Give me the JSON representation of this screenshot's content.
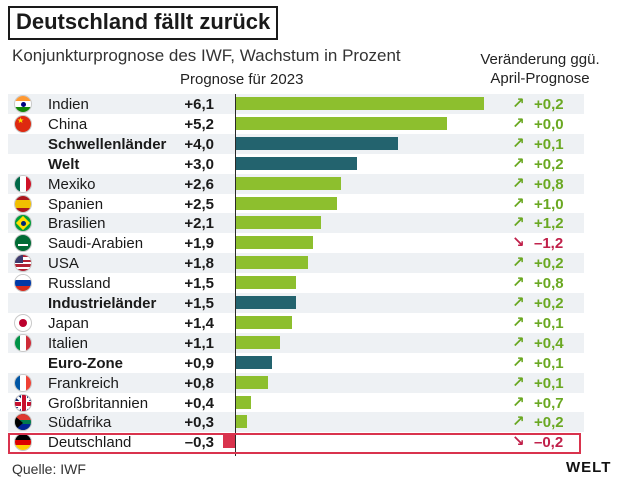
{
  "header": {
    "title": "Deutschland fällt zurück",
    "subtitle": "Konjunkturprognose des IWF, Wachstum in Prozent",
    "col_forecast": "Prognose für 2023",
    "col_change_line1": "Veränderung ggü.",
    "col_change_line2": "April-Prognose"
  },
  "footer": {
    "source": "Quelle: IWF",
    "logo": "WELT"
  },
  "colors": {
    "country_bar": "#8dbf2e",
    "aggregate_bar": "#23636e",
    "negative_bar": "#d9334d",
    "up_arrow": "#6aa822",
    "down_arrow": "#c0204a",
    "highlight_border": "#d9334d"
  },
  "chart_data": {
    "type": "bar",
    "orientation": "horizontal",
    "title": "Deutschland fällt zurück",
    "subtitle": "Konjunkturprognose des IWF, Wachstum in Prozent",
    "value_label": "Prognose für 2023",
    "change_label": "Veränderung ggü. April-Prognose",
    "xlim": [
      -0.5,
      6.1
    ],
    "grid": false,
    "rows": [
      {
        "name": "Indien",
        "value": 6.1,
        "value_label": "+6,1",
        "change": 0.2,
        "change_label": "+0,2",
        "group": "country",
        "flag": "india"
      },
      {
        "name": "China",
        "value": 5.2,
        "value_label": "+5,2",
        "change": 0.0,
        "change_label": "+0,0",
        "group": "country",
        "flag": "china"
      },
      {
        "name": "Schwellenländer",
        "value": 4.0,
        "value_label": "+4,0",
        "change": 0.1,
        "change_label": "+0,1",
        "group": "aggregate",
        "flag": ""
      },
      {
        "name": "Welt",
        "value": 3.0,
        "value_label": "+3,0",
        "change": 0.2,
        "change_label": "+0,2",
        "group": "aggregate",
        "flag": ""
      },
      {
        "name": "Mexiko",
        "value": 2.6,
        "value_label": "+2,6",
        "change": 0.8,
        "change_label": "+0,8",
        "group": "country",
        "flag": "mexico"
      },
      {
        "name": "Spanien",
        "value": 2.5,
        "value_label": "+2,5",
        "change": 1.0,
        "change_label": "+1,0",
        "group": "country",
        "flag": "spain"
      },
      {
        "name": "Brasilien",
        "value": 2.1,
        "value_label": "+2,1",
        "change": 1.2,
        "change_label": "+1,2",
        "group": "country",
        "flag": "brazil"
      },
      {
        "name": "Saudi-Arabien",
        "value": 1.9,
        "value_label": "+1,9",
        "change": -1.2,
        "change_label": "–1,2",
        "group": "country",
        "flag": "saudi-arabia"
      },
      {
        "name": "USA",
        "value": 1.8,
        "value_label": "+1,8",
        "change": 0.2,
        "change_label": "+0,2",
        "group": "country",
        "flag": "usa"
      },
      {
        "name": "Russland",
        "value": 1.5,
        "value_label": "+1,5",
        "change": 0.8,
        "change_label": "+0,8",
        "group": "country",
        "flag": "russia"
      },
      {
        "name": "Industrieländer",
        "value": 1.5,
        "value_label": "+1,5",
        "change": 0.2,
        "change_label": "+0,2",
        "group": "aggregate",
        "flag": ""
      },
      {
        "name": "Japan",
        "value": 1.4,
        "value_label": "+1,4",
        "change": 0.1,
        "change_label": "+0,1",
        "group": "country",
        "flag": "japan"
      },
      {
        "name": "Italien",
        "value": 1.1,
        "value_label": "+1,1",
        "change": 0.4,
        "change_label": "+0,4",
        "group": "country",
        "flag": "italy"
      },
      {
        "name": "Euro-Zone",
        "value": 0.9,
        "value_label": "+0,9",
        "change": 0.1,
        "change_label": "+0,1",
        "group": "aggregate",
        "flag": ""
      },
      {
        "name": "Frankreich",
        "value": 0.8,
        "value_label": "+0,8",
        "change": 0.1,
        "change_label": "+0,1",
        "group": "country",
        "flag": "france"
      },
      {
        "name": "Großbritannien",
        "value": 0.4,
        "value_label": "+0,4",
        "change": 0.7,
        "change_label": "+0,7",
        "group": "country",
        "flag": "uk"
      },
      {
        "name": "Südafrika",
        "value": 0.3,
        "value_label": "+0,3",
        "change": 0.2,
        "change_label": "+0,2",
        "group": "country",
        "flag": "south-africa"
      },
      {
        "name": "Deutschland",
        "value": -0.3,
        "value_label": "–0,3",
        "change": -0.2,
        "change_label": "–0,2",
        "group": "country",
        "flag": "germany",
        "highlighted": true
      }
    ]
  }
}
